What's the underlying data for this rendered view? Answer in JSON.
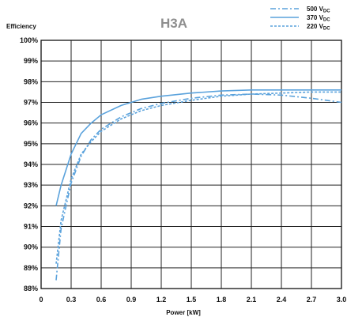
{
  "chart_data": {
    "type": "line",
    "title": "H3A",
    "ylabel": "Efficiency",
    "xlabel": "Power [kW]",
    "xlim": [
      0,
      3.0
    ],
    "ylim": [
      88,
      100
    ],
    "x_ticks": [
      "0",
      "0.3",
      "0.6",
      "0.9",
      "1.2",
      "1.5",
      "1.8",
      "2.1",
      "2.4",
      "2.7",
      "3.0"
    ],
    "y_ticks": [
      "88%",
      "89%",
      "90%",
      "91%",
      "92%",
      "93%",
      "94%",
      "95%",
      "96%",
      "97%",
      "98%",
      "99%",
      "100%"
    ],
    "grid": true,
    "legend_position": "top-right",
    "line_color": "#5aa2dc",
    "series": [
      {
        "name": "500 V",
        "name_sub": "DC",
        "style": "dashdot",
        "points": [
          [
            0.15,
            88.4
          ],
          [
            0.2,
            90.9
          ],
          [
            0.3,
            93.1
          ],
          [
            0.4,
            94.4
          ],
          [
            0.5,
            95.2
          ],
          [
            0.6,
            95.7
          ],
          [
            0.8,
            96.3
          ],
          [
            1.0,
            96.7
          ],
          [
            1.2,
            96.95
          ],
          [
            1.5,
            97.2
          ],
          [
            1.8,
            97.35
          ],
          [
            2.1,
            97.4
          ],
          [
            2.4,
            97.35
          ],
          [
            2.7,
            97.2
          ],
          [
            3.0,
            97.0
          ]
        ]
      },
      {
        "name": "370 V",
        "name_sub": "DC",
        "style": "solid",
        "points": [
          [
            0.15,
            92.0
          ],
          [
            0.2,
            93.0
          ],
          [
            0.3,
            94.5
          ],
          [
            0.4,
            95.5
          ],
          [
            0.5,
            96.0
          ],
          [
            0.6,
            96.4
          ],
          [
            0.8,
            96.85
          ],
          [
            1.0,
            97.15
          ],
          [
            1.2,
            97.3
          ],
          [
            1.5,
            97.45
          ],
          [
            1.8,
            97.55
          ],
          [
            2.1,
            97.6
          ],
          [
            2.4,
            97.6
          ],
          [
            2.7,
            97.6
          ],
          [
            3.0,
            97.6
          ]
        ]
      },
      {
        "name": "220 V",
        "name_sub": "DC",
        "style": "dashed",
        "points": [
          [
            0.15,
            89.2
          ],
          [
            0.2,
            91.3
          ],
          [
            0.3,
            93.3
          ],
          [
            0.4,
            94.5
          ],
          [
            0.5,
            95.1
          ],
          [
            0.6,
            95.6
          ],
          [
            0.8,
            96.2
          ],
          [
            1.0,
            96.6
          ],
          [
            1.2,
            96.85
          ],
          [
            1.5,
            97.1
          ],
          [
            1.8,
            97.3
          ],
          [
            2.1,
            97.4
          ],
          [
            2.4,
            97.45
          ],
          [
            2.7,
            97.5
          ],
          [
            3.0,
            97.5
          ]
        ]
      }
    ]
  }
}
